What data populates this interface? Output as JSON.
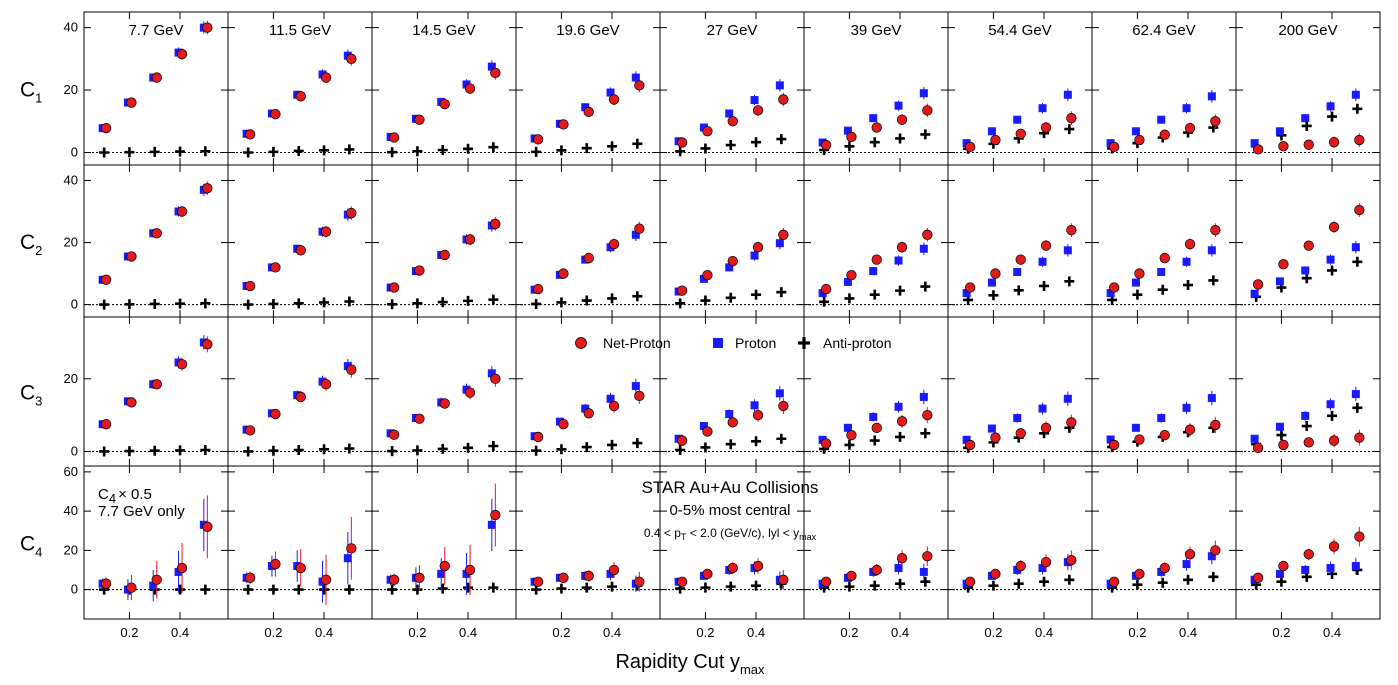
{
  "chart_data": {
    "type": "scatter",
    "x": [
      0.1,
      0.2,
      0.3,
      0.4,
      0.5
    ],
    "xlim": [
      0.06,
      0.55
    ],
    "xticks": [
      0.2,
      0.4
    ],
    "xtick_labels": [
      "0.2",
      "0.4"
    ],
    "xlabel": "Rapidity Cut y",
    "xlabel_sub": "max",
    "energies": [
      "7.7 GeV",
      "11.5 GeV",
      "14.5 GeV",
      "19.6 GeV",
      "27 GeV",
      "39 GeV",
      "54.4 GeV",
      "62.4 GeV",
      "200 GeV"
    ],
    "rows": [
      {
        "label": "C",
        "sub": "1",
        "ylim": [
          -4,
          45
        ],
        "yticks": [
          0,
          20,
          40
        ],
        "ytick_labels": [
          "0",
          "20",
          "40"
        ]
      },
      {
        "label": "C",
        "sub": "2",
        "ylim": [
          -4,
          45
        ],
        "yticks": [
          0,
          20,
          40
        ],
        "ytick_labels": [
          "0",
          "20",
          "40"
        ]
      },
      {
        "label": "C",
        "sub": "3",
        "ylim": [
          -4,
          37
        ],
        "yticks": [
          0,
          20
        ],
        "ytick_labels": [
          "0",
          "20"
        ]
      },
      {
        "label": "C",
        "sub": "4",
        "ylim": [
          -15,
          63
        ],
        "yticks": [
          0,
          20,
          40,
          60
        ],
        "ytick_labels": [
          "0",
          "20",
          "40",
          "60"
        ]
      }
    ],
    "legend": {
      "net_proton": "Net-Proton",
      "proton": "Proton",
      "anti_proton": "Anti-proton"
    },
    "series_colors": {
      "net_proton": "#e31a1c",
      "proton": "#1a1aff",
      "anti_proton": "#000000"
    },
    "annotations": {
      "c4_scale_a": "C",
      "c4_scale_sub": "4",
      "c4_scale_b": "× 0.5",
      "c4_scale_c": "7.7 GeV only",
      "experiment": "STAR Au+Au Collisions",
      "centrality": "0-5% most central",
      "cuts_a": "0.4 < p",
      "cuts_sub1": "T",
      "cuts_b": " < 2.0 (GeV/c), lyl < y",
      "cuts_sub2": "max"
    },
    "data": {
      "C1": {
        "net_proton": [
          [
            7.8,
            16,
            24,
            31.5,
            40
          ],
          [
            5.8,
            12.3,
            18,
            24,
            30
          ],
          [
            4.8,
            10.5,
            15.5,
            20.5,
            25.5
          ],
          [
            4.2,
            9,
            13,
            17,
            21.5
          ],
          [
            3.2,
            6.8,
            10,
            13.5,
            17
          ],
          [
            2.4,
            5,
            8,
            10.5,
            13.5
          ],
          [
            1.8,
            4,
            6,
            8,
            11
          ],
          [
            1.8,
            4,
            5.7,
            7.8,
            10
          ],
          [
            1,
            2,
            2.5,
            3.3,
            4
          ]
        ],
        "proton": [
          [
            7.8,
            16,
            24,
            32,
            40
          ],
          [
            6,
            12.5,
            18.5,
            25,
            31
          ],
          [
            5,
            10.8,
            16.2,
            21.8,
            27.5
          ],
          [
            4.5,
            9.2,
            14.5,
            19.2,
            24
          ],
          [
            3.6,
            8,
            12.5,
            16.8,
            21.5
          ],
          [
            3.2,
            7,
            11,
            15,
            19
          ],
          [
            3,
            6.8,
            10.5,
            14.2,
            18.5
          ],
          [
            3,
            6.8,
            10.5,
            14.2,
            18
          ],
          [
            3,
            6.8,
            11,
            14.8,
            18.5
          ]
        ],
        "anti_proton": [
          [
            0,
            0.1,
            0.2,
            0.3,
            0.4
          ],
          [
            0,
            0.2,
            0.5,
            0.7,
            1
          ],
          [
            0.1,
            0.4,
            0.8,
            1.2,
            1.7
          ],
          [
            0.2,
            0.7,
            1.4,
            2,
            2.8
          ],
          [
            0.4,
            1.3,
            2.4,
            3.3,
            4.3
          ],
          [
            0.8,
            2,
            3.3,
            4.5,
            5.8
          ],
          [
            1.2,
            2.8,
            4.5,
            6.2,
            7.5
          ],
          [
            1.3,
            3,
            4.8,
            6.4,
            8
          ],
          [
            2,
            5.5,
            8.5,
            11.5,
            14
          ]
        ]
      },
      "C2": {
        "net_proton": [
          [
            8,
            15.5,
            23,
            30,
            37.5
          ],
          [
            6,
            12,
            17.5,
            23.5,
            29.5
          ],
          [
            5.5,
            11,
            16,
            21,
            26
          ],
          [
            5,
            10,
            15,
            19.5,
            24.5
          ],
          [
            4.5,
            9.5,
            14,
            18.5,
            22.5
          ],
          [
            5,
            9.5,
            14.5,
            18.5,
            22.5
          ],
          [
            5.5,
            10,
            14.5,
            19,
            24
          ],
          [
            5.5,
            10,
            15,
            19.5,
            24
          ],
          [
            6.5,
            13,
            19,
            25,
            30.5
          ]
        ],
        "proton": [
          [
            8,
            15.5,
            23,
            30,
            37
          ],
          [
            6,
            12,
            18,
            23.5,
            29
          ],
          [
            5.5,
            10.8,
            16,
            21,
            25.5
          ],
          [
            4.8,
            9.6,
            14.5,
            18.5,
            22.5
          ],
          [
            4.2,
            8.3,
            12,
            15.8,
            19.8
          ],
          [
            3.7,
            7.3,
            10.8,
            14.2,
            18
          ],
          [
            3.7,
            7.1,
            10.5,
            13.8,
            17.5
          ],
          [
            3.7,
            7.1,
            10.5,
            13.8,
            17.5
          ],
          [
            3.5,
            7.5,
            11,
            14.5,
            18.5
          ]
        ],
        "anti_proton": [
          [
            0,
            0.1,
            0.2,
            0.3,
            0.4
          ],
          [
            0,
            0.2,
            0.4,
            0.7,
            1
          ],
          [
            0.1,
            0.4,
            0.8,
            1.2,
            1.6
          ],
          [
            0.2,
            0.7,
            1.3,
            2,
            2.7
          ],
          [
            0.4,
            1.3,
            2.2,
            3.2,
            4
          ],
          [
            0.9,
            2,
            3.2,
            4.5,
            5.8
          ],
          [
            1.5,
            3,
            4.6,
            6,
            7.5
          ],
          [
            1.5,
            3.2,
            4.8,
            6.3,
            7.8
          ],
          [
            2.5,
            5.5,
            8.5,
            11,
            13.8
          ]
        ]
      },
      "C3": {
        "net_proton": [
          [
            7.5,
            13.5,
            18.5,
            24,
            29.5
          ],
          [
            5.8,
            10.3,
            15,
            18.5,
            22.5
          ],
          [
            4.6,
            9,
            13.2,
            16.2,
            20
          ],
          [
            4,
            7.5,
            10.5,
            12.5,
            15.3
          ],
          [
            3,
            5.5,
            8,
            10,
            12.5
          ],
          [
            2.2,
            4.5,
            6.5,
            8.3,
            10
          ],
          [
            1.8,
            3.8,
            5,
            6.5,
            8
          ],
          [
            1.8,
            3.3,
            4.5,
            6,
            7.3
          ],
          [
            1,
            1.8,
            2.5,
            3,
            3.8
          ]
        ],
        "proton": [
          [
            7.5,
            13.8,
            18.5,
            24.5,
            30
          ],
          [
            6,
            10.5,
            15.5,
            19.2,
            23.5
          ],
          [
            5,
            9.2,
            13.5,
            17,
            21.5
          ],
          [
            4.2,
            8.2,
            11.8,
            14.5,
            18
          ],
          [
            3.5,
            7,
            10.3,
            12.7,
            16
          ],
          [
            3.2,
            6.5,
            9.5,
            12.3,
            15
          ],
          [
            3.2,
            6.3,
            9.2,
            11.8,
            14.5
          ],
          [
            3.3,
            6.5,
            9.2,
            12,
            14.7
          ],
          [
            3.5,
            6.8,
            9.8,
            13,
            15.8
          ]
        ],
        "anti_proton": [
          [
            0,
            0.1,
            0.2,
            0.3,
            0.4
          ],
          [
            0,
            0.2,
            0.4,
            0.6,
            0.8
          ],
          [
            0.1,
            0.3,
            0.7,
            1,
            1.5
          ],
          [
            0.2,
            0.6,
            1.2,
            1.8,
            2.3
          ],
          [
            0.4,
            1.1,
            2,
            2.8,
            3.5
          ],
          [
            0.7,
            1.8,
            3,
            4,
            5
          ],
          [
            1,
            2.5,
            3.8,
            5,
            6.5
          ],
          [
            1.2,
            2.7,
            4,
            5.3,
            6.5
          ],
          [
            2,
            4.5,
            7,
            9.8,
            12
          ]
        ]
      },
      "C4": {
        "net_proton": [
          [
            3,
            1,
            5,
            11,
            32
          ],
          [
            6,
            13,
            11,
            5,
            21
          ],
          [
            5,
            6,
            12,
            10,
            38
          ],
          [
            4,
            6,
            7,
            10,
            4
          ],
          [
            4,
            8,
            11,
            12,
            5
          ],
          [
            4,
            7,
            10,
            16,
            17
          ],
          [
            4,
            8,
            12,
            14,
            15
          ],
          [
            4,
            8,
            11,
            18,
            20
          ],
          [
            6,
            12,
            18,
            22,
            27
          ]
        ],
        "proton": [
          [
            3,
            0,
            2,
            9,
            33
          ],
          [
            6,
            12,
            12,
            4,
            16
          ],
          [
            5,
            6,
            8,
            8,
            33
          ],
          [
            4,
            6,
            7,
            8,
            3
          ],
          [
            4,
            7,
            10,
            11,
            5
          ],
          [
            3,
            6,
            9,
            11,
            9
          ],
          [
            3,
            7,
            10,
            11,
            14
          ],
          [
            3,
            7,
            9,
            13,
            17
          ],
          [
            5,
            8,
            10,
            11,
            12
          ]
        ],
        "anti_proton": [
          [
            0,
            0,
            0,
            0,
            0
          ],
          [
            0,
            0,
            0,
            0,
            0
          ],
          [
            0,
            0,
            0.5,
            1,
            1
          ],
          [
            0,
            0.5,
            1,
            1.5,
            2
          ],
          [
            0.5,
            1,
            1.5,
            2,
            3
          ],
          [
            1,
            1.5,
            2,
            3,
            4
          ],
          [
            1,
            2,
            3,
            4,
            5
          ],
          [
            1,
            2.5,
            3.5,
            5,
            6.5
          ],
          [
            2.5,
            4,
            6.5,
            8,
            10
          ]
        ]
      }
    }
  }
}
